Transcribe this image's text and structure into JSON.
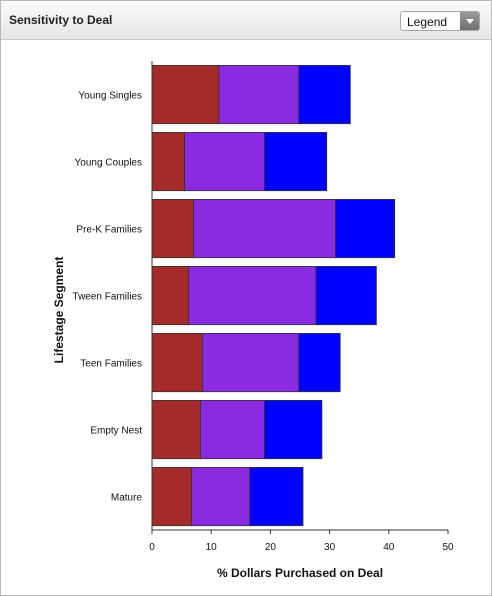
{
  "panel": {
    "title": "Sensitivity to Deal",
    "legend_select": {
      "selected": "Legend"
    }
  },
  "chart_data": {
    "type": "bar",
    "orientation": "horizontal",
    "stacked": true,
    "categories": [
      "Young Singles",
      "Young Couples",
      "Pre-K Families",
      "Tween Families",
      "Teen Families",
      "Empty Nest",
      "Mature"
    ],
    "series": [
      {
        "color": "#a52a2a",
        "values": [
          11.3,
          5.5,
          7.0,
          6.2,
          8.5,
          8.2,
          6.7
        ]
      },
      {
        "color": "#8a2be2",
        "values": [
          13.5,
          13.5,
          24.0,
          21.5,
          16.3,
          10.8,
          9.8
        ]
      },
      {
        "color": "#0000ff",
        "values": [
          8.7,
          10.5,
          10.0,
          10.2,
          7.0,
          9.7,
          9.0
        ]
      }
    ],
    "xlabel": "% Dollars Purchased on Deal",
    "ylabel": "Lifestage Segment",
    "xlim": [
      0,
      50
    ],
    "xticks": [
      0,
      10,
      20,
      30,
      40,
      50
    ],
    "grid": false,
    "legend": "none"
  }
}
